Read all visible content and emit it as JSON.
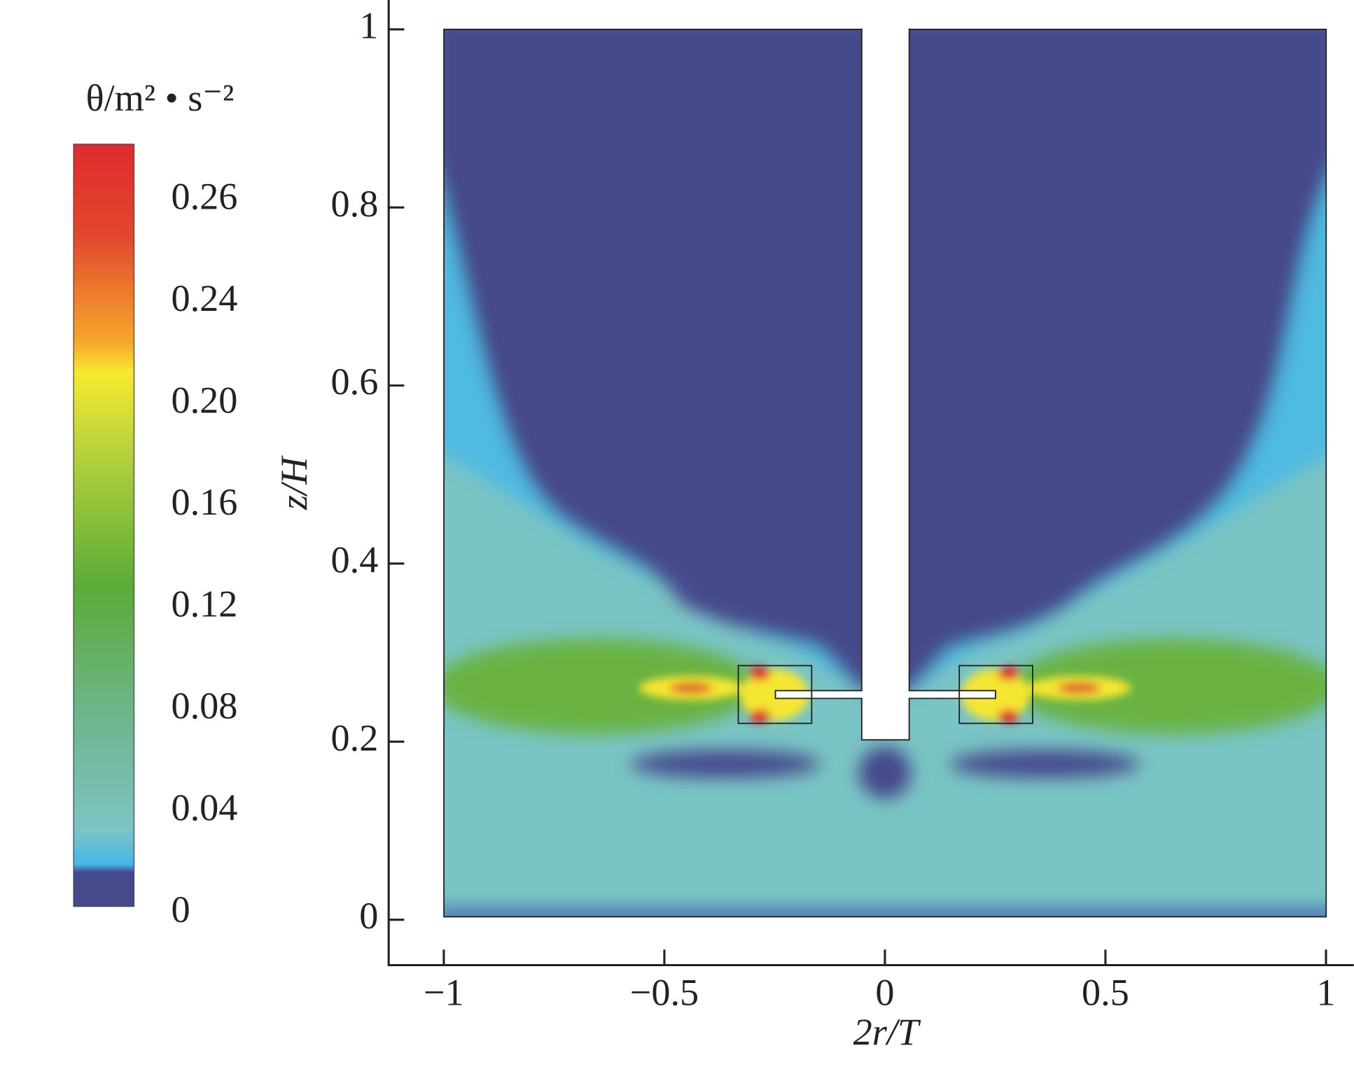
{
  "chart_data": {
    "type": "contour",
    "xlabel": "2r/T",
    "ylabel": "z/H",
    "xlim": [
      -1.125,
      1.063
    ],
    "ylim": [
      -0.051,
      1.033
    ],
    "xticks": [
      {
        "value": -1,
        "label": "−1"
      },
      {
        "value": -0.5,
        "label": "−0.5"
      },
      0,
      0.5,
      1
    ],
    "yticks": [
      0,
      0.2,
      0.4,
      0.6,
      0.8,
      1
    ],
    "colorbar": {
      "title": "θ/m² • s⁻²",
      "ticks": [
        0,
        0.04,
        0.08,
        0.12,
        0.16,
        {
          "value": 0.2,
          "label": "0.20"
        },
        0.24,
        0.26
      ]
    }
  }
}
